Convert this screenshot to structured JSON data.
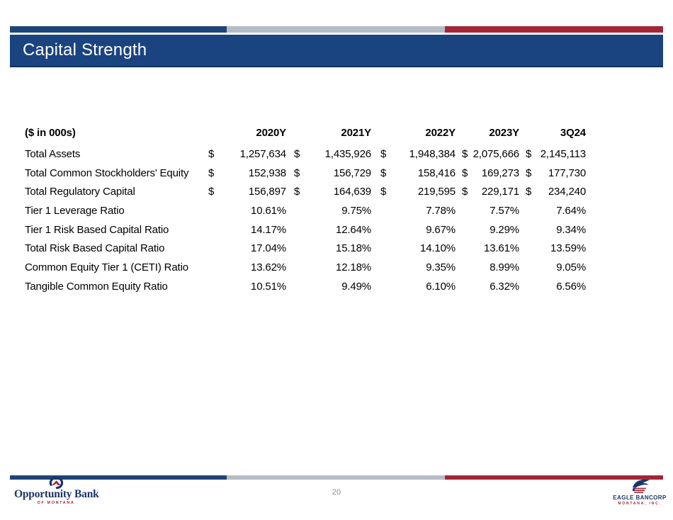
{
  "slide": {
    "title": "Capital Strength"
  },
  "colors": {
    "navy": "#1a4480",
    "bar_blue": "#1d4477",
    "bar_gray": "#b6bcc6",
    "bar_red": "#a32638",
    "logo_navy": "#1c3667",
    "logo_red": "#a32638",
    "page_gray": "#8a8a8a"
  },
  "table": {
    "unit_label": "($ in 000s)",
    "currency_symbol": "$",
    "columns": [
      "2020Y",
      "2021Y",
      "2022Y",
      "2023Y",
      "3Q24"
    ],
    "rows": [
      {
        "label": "Total Assets",
        "currency": true,
        "values": [
          "1,257,634",
          "1,435,926",
          "1,948,384",
          "2,075,666",
          "2,145,113"
        ]
      },
      {
        "label": "Total Common Stockholders' Equity",
        "currency": true,
        "values": [
          "152,938",
          "156,729",
          "158,416",
          "169,273",
          "177,730"
        ]
      },
      {
        "label": "Total Regulatory Capital",
        "currency": true,
        "values": [
          "156,897",
          "164,639",
          "219,595",
          "229,171",
          "234,240"
        ]
      },
      {
        "label": "Tier 1 Leverage Ratio",
        "currency": false,
        "values": [
          "10.61%",
          "9.75%",
          "7.78%",
          "7.57%",
          "7.64%"
        ]
      },
      {
        "label": "Tier 1 Risk Based Capital Ratio",
        "currency": false,
        "values": [
          "14.17%",
          "12.64%",
          "9.67%",
          "9.29%",
          "9.34%"
        ]
      },
      {
        "label": "Total Risk Based Capital Ratio",
        "currency": false,
        "values": [
          "17.04%",
          "15.18%",
          "14.10%",
          "13.61%",
          "13.59%"
        ]
      },
      {
        "label": "Common Equity Tier 1 (CETI) Ratio",
        "currency": false,
        "values": [
          "13.62%",
          "12.18%",
          "9.35%",
          "8.99%",
          "9.05%"
        ]
      },
      {
        "label": "Tangible Common Equity Ratio",
        "currency": false,
        "values": [
          "10.51%",
          "9.49%",
          "6.10%",
          "6.32%",
          "6.56%"
        ]
      }
    ]
  },
  "footer": {
    "page_number": "20",
    "left_logo": {
      "name": "Opportunity Bank",
      "subtext": "OF MONTANA"
    },
    "right_logo": {
      "line1": "EAGLE BANCORP",
      "line2": "MONTANA, INC."
    }
  }
}
